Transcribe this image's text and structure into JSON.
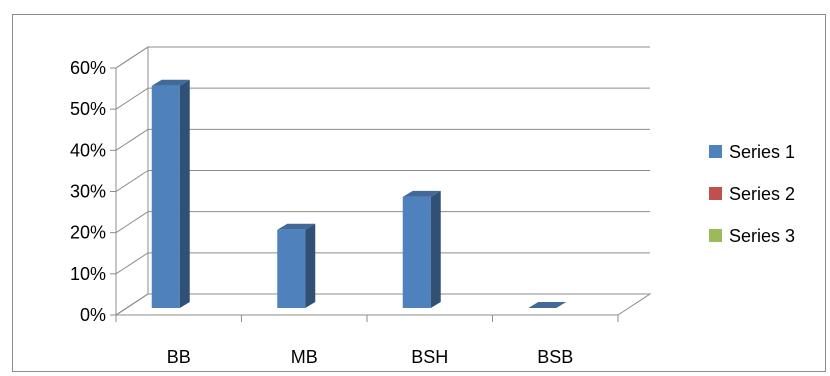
{
  "chart_data": {
    "type": "bar",
    "style": "3d-clustered-column",
    "categories": [
      "BB",
      "MB",
      "BSH",
      "BSB"
    ],
    "series": [
      {
        "name": "Series 1",
        "values": [
          54,
          19,
          27,
          0
        ],
        "color": "#4f81bd"
      },
      {
        "name": "Series 2",
        "values": [
          0,
          0,
          0,
          0
        ],
        "color": "#c0504d"
      },
      {
        "name": "Series 3",
        "values": [
          0,
          0,
          0,
          0
        ],
        "color": "#9bbb59"
      }
    ],
    "y_ticks": [
      "0%",
      "10%",
      "20%",
      "30%",
      "40%",
      "50%",
      "60%"
    ],
    "ylim": [
      0,
      60
    ],
    "y_unit": "%",
    "grid": true,
    "legend_position": "right"
  }
}
